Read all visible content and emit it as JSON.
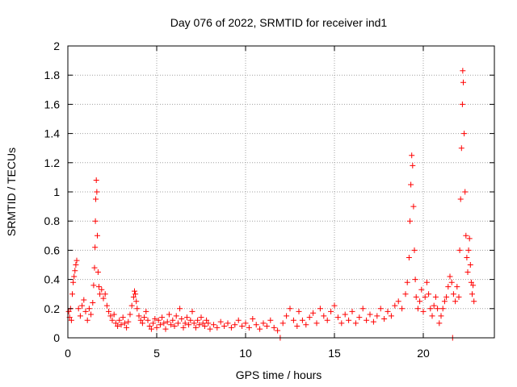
{
  "chart_data": {
    "type": "scatter",
    "title": "Day 076 of 2022, SRMTID for receiver ind1",
    "xlabel": "GPS time / hours",
    "ylabel": "SRMTID / TECUs",
    "xlim": [
      0,
      24
    ],
    "ylim": [
      0,
      2
    ],
    "x_ticks": [
      0,
      5,
      10,
      15,
      20
    ],
    "x_tick_labels": [
      "0",
      "5",
      "10",
      "15",
      "20"
    ],
    "y_ticks": [
      0,
      0.2,
      0.4,
      0.6,
      0.8,
      1,
      1.2,
      1.4,
      1.6,
      1.8,
      2
    ],
    "y_tick_labels": [
      "0",
      "0.2",
      "0.4",
      "0.6",
      "0.8",
      "1",
      "1.2",
      "1.4",
      "1.6",
      "1.8",
      "2"
    ],
    "grid": true,
    "marker": "+",
    "series": [
      {
        "name": "SRMTID",
        "color": "#ff0000",
        "points": [
          [
            0.05,
            0.18
          ],
          [
            0.1,
            0.14
          ],
          [
            0.15,
            0.2
          ],
          [
            0.2,
            0.12
          ],
          [
            0.25,
            0.3
          ],
          [
            0.3,
            0.38
          ],
          [
            0.35,
            0.42
          ],
          [
            0.4,
            0.46
          ],
          [
            0.45,
            0.5
          ],
          [
            0.5,
            0.53
          ],
          [
            0.6,
            0.2
          ],
          [
            0.7,
            0.15
          ],
          [
            0.8,
            0.22
          ],
          [
            0.9,
            0.26
          ],
          [
            1.0,
            0.18
          ],
          [
            1.1,
            0.12
          ],
          [
            1.2,
            0.2
          ],
          [
            1.3,
            0.16
          ],
          [
            1.4,
            0.24
          ],
          [
            1.45,
            0.36
          ],
          [
            1.5,
            0.48
          ],
          [
            1.53,
            0.62
          ],
          [
            1.55,
            0.8
          ],
          [
            1.57,
            0.95
          ],
          [
            1.6,
            1.08
          ],
          [
            1.63,
            1.0
          ],
          [
            1.66,
            0.7
          ],
          [
            1.7,
            0.45
          ],
          [
            1.75,
            0.35
          ],
          [
            1.8,
            0.3
          ],
          [
            1.9,
            0.33
          ],
          [
            2.0,
            0.27
          ],
          [
            2.1,
            0.3
          ],
          [
            2.2,
            0.22
          ],
          [
            2.3,
            0.18
          ],
          [
            2.4,
            0.15
          ],
          [
            2.5,
            0.12
          ],
          [
            2.6,
            0.16
          ],
          [
            2.7,
            0.1
          ],
          [
            2.8,
            0.08
          ],
          [
            2.9,
            0.12
          ],
          [
            3.0,
            0.09
          ],
          [
            3.1,
            0.14
          ],
          [
            3.2,
            0.1
          ],
          [
            3.3,
            0.07
          ],
          [
            3.4,
            0.11
          ],
          [
            3.5,
            0.16
          ],
          [
            3.6,
            0.22
          ],
          [
            3.7,
            0.28
          ],
          [
            3.75,
            0.32
          ],
          [
            3.8,
            0.3
          ],
          [
            3.85,
            0.25
          ],
          [
            3.9,
            0.2
          ],
          [
            4.0,
            0.15
          ],
          [
            4.1,
            0.12
          ],
          [
            4.2,
            0.1
          ],
          [
            4.3,
            0.14
          ],
          [
            4.4,
            0.18
          ],
          [
            4.5,
            0.12
          ],
          [
            4.6,
            0.08
          ],
          [
            4.7,
            0.06
          ],
          [
            4.8,
            0.1
          ],
          [
            4.9,
            0.13
          ],
          [
            5.0,
            0.07
          ],
          [
            5.1,
            0.12
          ],
          [
            5.2,
            0.09
          ],
          [
            5.3,
            0.14
          ],
          [
            5.4,
            0.1
          ],
          [
            5.5,
            0.06
          ],
          [
            5.6,
            0.11
          ],
          [
            5.7,
            0.16
          ],
          [
            5.8,
            0.09
          ],
          [
            5.9,
            0.12
          ],
          [
            6.0,
            0.08
          ],
          [
            6.1,
            0.15
          ],
          [
            6.2,
            0.1
          ],
          [
            6.3,
            0.2
          ],
          [
            6.4,
            0.13
          ],
          [
            6.5,
            0.07
          ],
          [
            6.6,
            0.1
          ],
          [
            6.7,
            0.14
          ],
          [
            6.8,
            0.09
          ],
          [
            6.9,
            0.12
          ],
          [
            7.0,
            0.18
          ],
          [
            7.1,
            0.1
          ],
          [
            7.2,
            0.07
          ],
          [
            7.3,
            0.12
          ],
          [
            7.4,
            0.09
          ],
          [
            7.5,
            0.14
          ],
          [
            7.6,
            0.1
          ],
          [
            7.7,
            0.08
          ],
          [
            7.8,
            0.12
          ],
          [
            7.9,
            0.1
          ],
          [
            8.0,
            0.06
          ],
          [
            8.2,
            0.09
          ],
          [
            8.4,
            0.07
          ],
          [
            8.6,
            0.11
          ],
          [
            8.8,
            0.08
          ],
          [
            9.0,
            0.1
          ],
          [
            9.2,
            0.07
          ],
          [
            9.4,
            0.09
          ],
          [
            9.6,
            0.12
          ],
          [
            9.8,
            0.08
          ],
          [
            10.0,
            0.1
          ],
          [
            10.2,
            0.07
          ],
          [
            10.4,
            0.13
          ],
          [
            10.6,
            0.09
          ],
          [
            10.8,
            0.06
          ],
          [
            11.0,
            0.1
          ],
          [
            11.2,
            0.08
          ],
          [
            11.4,
            0.12
          ],
          [
            11.6,
            0.07
          ],
          [
            11.8,
            0.05
          ],
          [
            11.95,
            0.0
          ],
          [
            12.1,
            0.1
          ],
          [
            12.3,
            0.15
          ],
          [
            12.5,
            0.2
          ],
          [
            12.7,
            0.12
          ],
          [
            12.9,
            0.08
          ],
          [
            13.0,
            0.18
          ],
          [
            13.2,
            0.12
          ],
          [
            13.4,
            0.09
          ],
          [
            13.6,
            0.14
          ],
          [
            13.8,
            0.17
          ],
          [
            14.0,
            0.1
          ],
          [
            14.2,
            0.2
          ],
          [
            14.4,
            0.15
          ],
          [
            14.6,
            0.12
          ],
          [
            14.8,
            0.18
          ],
          [
            15.0,
            0.22
          ],
          [
            15.2,
            0.14
          ],
          [
            15.4,
            0.1
          ],
          [
            15.6,
            0.16
          ],
          [
            15.8,
            0.12
          ],
          [
            16.0,
            0.18
          ],
          [
            16.2,
            0.1
          ],
          [
            16.4,
            0.14
          ],
          [
            16.6,
            0.2
          ],
          [
            16.8,
            0.12
          ],
          [
            17.0,
            0.16
          ],
          [
            17.2,
            0.11
          ],
          [
            17.4,
            0.15
          ],
          [
            17.6,
            0.2
          ],
          [
            17.8,
            0.13
          ],
          [
            18.0,
            0.18
          ],
          [
            18.2,
            0.15
          ],
          [
            18.4,
            0.22
          ],
          [
            18.6,
            0.25
          ],
          [
            18.8,
            0.2
          ],
          [
            19.0,
            0.3
          ],
          [
            19.1,
            0.38
          ],
          [
            19.2,
            0.55
          ],
          [
            19.25,
            0.8
          ],
          [
            19.3,
            1.05
          ],
          [
            19.35,
            1.25
          ],
          [
            19.4,
            1.18
          ],
          [
            19.45,
            0.9
          ],
          [
            19.5,
            0.6
          ],
          [
            19.55,
            0.4
          ],
          [
            19.6,
            0.28
          ],
          [
            19.7,
            0.2
          ],
          [
            19.8,
            0.25
          ],
          [
            19.9,
            0.33
          ],
          [
            20.0,
            0.18
          ],
          [
            20.1,
            0.28
          ],
          [
            20.2,
            0.38
          ],
          [
            20.3,
            0.3
          ],
          [
            20.4,
            0.2
          ],
          [
            20.5,
            0.15
          ],
          [
            20.6,
            0.22
          ],
          [
            20.7,
            0.28
          ],
          [
            20.8,
            0.2
          ],
          [
            20.9,
            0.1
          ],
          [
            21.0,
            0.15
          ],
          [
            21.1,
            0.2
          ],
          [
            21.2,
            0.25
          ],
          [
            21.3,
            0.28
          ],
          [
            21.4,
            0.35
          ],
          [
            21.5,
            0.42
          ],
          [
            21.6,
            0.38
          ],
          [
            21.65,
            0.0
          ],
          [
            21.7,
            0.3
          ],
          [
            21.8,
            0.25
          ],
          [
            21.9,
            0.35
          ],
          [
            22.0,
            0.28
          ],
          [
            22.05,
            0.6
          ],
          [
            22.1,
            0.95
          ],
          [
            22.15,
            1.3
          ],
          [
            22.2,
            1.6
          ],
          [
            22.22,
            1.83
          ],
          [
            22.25,
            1.75
          ],
          [
            22.3,
            1.4
          ],
          [
            22.35,
            1.0
          ],
          [
            22.4,
            0.7
          ],
          [
            22.45,
            0.55
          ],
          [
            22.5,
            0.45
          ],
          [
            22.55,
            0.6
          ],
          [
            22.6,
            0.68
          ],
          [
            22.65,
            0.5
          ],
          [
            22.7,
            0.38
          ],
          [
            22.75,
            0.3
          ],
          [
            22.8,
            0.36
          ],
          [
            22.85,
            0.25
          ]
        ]
      }
    ]
  }
}
